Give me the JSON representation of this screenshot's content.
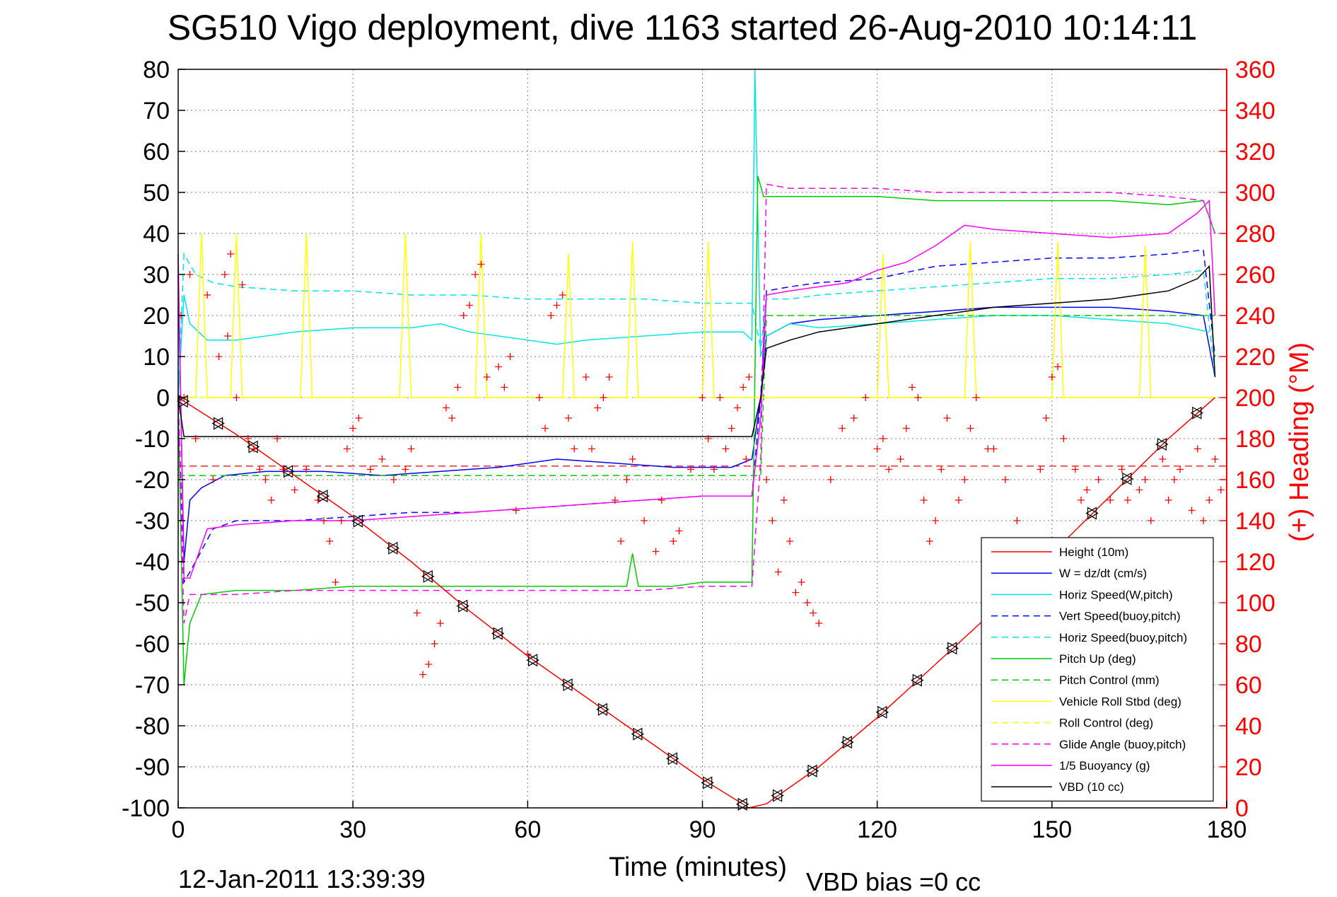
{
  "chart_data": {
    "type": "line",
    "title": "SG510 Vigo deployment, dive 1163 started 26-Aug-2010 10:14:11",
    "xlabel": "Time (minutes)",
    "ylabel_right": "(+) Heading (°M)",
    "xlim": [
      0,
      180
    ],
    "ylim": [
      -100,
      80
    ],
    "ylim_right": [
      0,
      360
    ],
    "x_ticks": [
      0,
      30,
      60,
      90,
      120,
      150,
      180
    ],
    "y_ticks": [
      80,
      70,
      60,
      50,
      40,
      30,
      20,
      10,
      0,
      -10,
      -20,
      -30,
      -40,
      -50,
      -60,
      -70,
      -80,
      -90,
      -100
    ],
    "y_ticks_right": [
      360,
      340,
      320,
      300,
      280,
      260,
      240,
      220,
      200,
      180,
      160,
      140,
      120,
      100,
      80,
      60,
      40,
      20,
      0
    ],
    "grid": true,
    "legend_position": "bottom-right",
    "series": [
      {
        "name": "Height (10m)",
        "color": "#ff0000",
        "style": "solid",
        "x": [
          0,
          10,
          20,
          30,
          40,
          50,
          60,
          70,
          80,
          90,
          98,
          101,
          110,
          120,
          130,
          140,
          150,
          160,
          170,
          178
        ],
        "y": [
          0,
          -9,
          -19,
          -29,
          -40,
          -52,
          -63,
          -73,
          -83,
          -93,
          -100,
          -99,
          -90,
          -78,
          -65,
          -52,
          -38,
          -24,
          -10,
          0
        ]
      },
      {
        "name": "W = dz/dt (cm/s)",
        "color": "#0000ff",
        "style": "solid",
        "x": [
          0,
          1,
          2,
          4,
          8,
          15,
          25,
          35,
          45,
          55,
          65,
          75,
          85,
          95,
          98.5,
          100,
          101,
          105,
          110,
          120,
          130,
          140,
          150,
          160,
          170,
          176,
          178
        ],
        "y": [
          30,
          -40,
          -25,
          -22,
          -19,
          -18,
          -18,
          -19,
          -18,
          -17,
          -15,
          -16,
          -17,
          -17,
          -15,
          0,
          15,
          18,
          19,
          20,
          21,
          22,
          22,
          22,
          21,
          20,
          5
        ]
      },
      {
        "name": "Horiz Speed(W,pitch)",
        "color": "#00e5e5",
        "style": "solid",
        "x": [
          0,
          1,
          2,
          5,
          10,
          20,
          30,
          40,
          45,
          50,
          60,
          65,
          70,
          80,
          90,
          97,
          98.5,
          99,
          100,
          101,
          105,
          110,
          120,
          130,
          140,
          150,
          160,
          170,
          177
        ],
        "y": [
          0,
          25,
          18,
          14,
          14,
          16,
          17,
          17,
          18,
          16,
          14,
          13,
          14,
          15,
          16,
          16,
          14,
          80,
          10,
          15,
          18,
          17,
          18,
          19,
          20,
          20,
          19,
          18,
          16
        ]
      },
      {
        "name": "Vert Speed(buoy,pitch)",
        "color": "#0000ff",
        "style": "dashed",
        "x": [
          0,
          1,
          3,
          6,
          10,
          20,
          30,
          40,
          50,
          60,
          70,
          80,
          90,
          98.5,
          100,
          101,
          105,
          110,
          120,
          130,
          140,
          150,
          160,
          170,
          176,
          178
        ],
        "y": [
          0,
          -45,
          -40,
          -32,
          -30,
          -30,
          -29,
          -28,
          -28,
          -27,
          -26,
          -25,
          -24,
          -24,
          0,
          26,
          27,
          28,
          29,
          32,
          33,
          34,
          34,
          35,
          36,
          10
        ]
      },
      {
        "name": "Horiz Speed(buoy,pitch)",
        "color": "#00e5e5",
        "style": "dashed",
        "x": [
          0,
          1,
          3,
          6,
          10,
          20,
          30,
          40,
          50,
          60,
          70,
          80,
          90,
          98.5,
          100,
          101,
          105,
          110,
          120,
          130,
          140,
          150,
          160,
          170,
          176,
          178
        ],
        "y": [
          0,
          35,
          30,
          28,
          27,
          26,
          26,
          25,
          25,
          24,
          24,
          24,
          23,
          23,
          12,
          24,
          24,
          25,
          26,
          27,
          28,
          29,
          29,
          30,
          31,
          5
        ]
      },
      {
        "name": "Pitch Up (deg)",
        "color": "#00cc00",
        "style": "solid",
        "x": [
          0,
          1,
          2,
          4,
          10,
          20,
          30,
          40,
          50,
          60,
          70,
          77,
          78,
          79,
          85,
          90,
          98.5,
          99.5,
          100.5,
          103,
          110,
          120,
          130,
          140,
          150,
          160,
          170,
          176,
          178
        ],
        "y": [
          0,
          -70,
          -55,
          -48,
          -47,
          -47,
          -46,
          -46,
          -46,
          -46,
          -46,
          -46,
          -38,
          -46,
          -46,
          -45,
          -45,
          54,
          49,
          49,
          49,
          49,
          48,
          48,
          48,
          48,
          47,
          48,
          40
        ]
      },
      {
        "name": "Pitch Control (mm)",
        "color": "#00cc00",
        "style": "dashed",
        "x": [
          0,
          2,
          100,
          101,
          178
        ],
        "y": [
          -19,
          -19,
          -19,
          20,
          20
        ]
      },
      {
        "name": "Vehicle Roll Stbd (deg)",
        "color": "#ffff00",
        "style": "solid",
        "x": [
          0,
          3,
          4,
          5,
          9,
          10,
          11,
          21,
          22,
          23,
          38,
          39,
          40,
          51,
          52,
          53,
          66,
          67,
          68,
          77,
          78,
          79,
          90,
          91,
          92,
          101,
          120,
          121,
          122,
          135,
          136,
          137,
          150,
          151,
          152,
          165,
          166,
          167,
          178
        ],
        "y": [
          0,
          0,
          40,
          0,
          0,
          40,
          0,
          0,
          40,
          0,
          0,
          40,
          0,
          0,
          40,
          0,
          0,
          35,
          0,
          0,
          38,
          0,
          0,
          38,
          0,
          0,
          0,
          35,
          0,
          0,
          38,
          0,
          0,
          38,
          0,
          0,
          37,
          0,
          0
        ]
      },
      {
        "name": "Roll Control (deg)",
        "color": "#ffff00",
        "style": "dashed",
        "x": [
          0,
          2,
          101,
          178
        ],
        "y": [
          0,
          0,
          0,
          0
        ]
      },
      {
        "name": "Glide Angle (buoy,pitch)",
        "color": "#ff00ff",
        "style": "dashed",
        "x": [
          0,
          1,
          2,
          5,
          10,
          20,
          30,
          40,
          50,
          60,
          70,
          80,
          90,
          98.5,
          100,
          101,
          105,
          110,
          120,
          130,
          140,
          150,
          160,
          170,
          176,
          178
        ],
        "y": [
          0,
          -55,
          -48,
          -48,
          -48,
          -47,
          -47,
          -47,
          -47,
          -47,
          -47,
          -47,
          -46,
          -46,
          -15,
          52,
          51,
          51,
          51,
          50,
          50,
          50,
          50,
          49,
          48,
          40
        ]
      },
      {
        "name": "1/5 Buoyancy (g)",
        "color": "#ff00ff",
        "style": "solid",
        "x": [
          0,
          1,
          2,
          5,
          10,
          20,
          30,
          40,
          50,
          60,
          70,
          80,
          90,
          98.5,
          100,
          101,
          105,
          110,
          115,
          120,
          125,
          130,
          135,
          140,
          150,
          160,
          170,
          175,
          177,
          178
        ],
        "y": [
          35,
          -44,
          -44,
          -32,
          -31,
          -30,
          -30,
          -29,
          -28,
          -27,
          -26,
          -25,
          -24,
          -24,
          -5,
          25,
          26,
          27,
          28,
          31,
          33,
          37,
          42,
          41,
          40,
          39,
          40,
          45,
          48,
          20
        ]
      },
      {
        "name": "VBD (10 cc)",
        "color": "#000000",
        "style": "solid",
        "x": [
          0,
          1,
          98.5,
          100,
          101,
          105,
          110,
          115,
          120,
          125,
          130,
          135,
          140,
          150,
          160,
          170,
          175,
          177,
          178
        ],
        "y": [
          0,
          -9.5,
          -9.5,
          0,
          12,
          14,
          16,
          17,
          18,
          19,
          20,
          21,
          22,
          23,
          24,
          26,
          29,
          32,
          5
        ]
      }
    ],
    "reference_line": {
      "color": "#ff0000",
      "style": "dashed",
      "y": -16.7
    },
    "heading_points": {
      "name": "(+) Heading (°M)",
      "color": "#ff0000",
      "marker": "+",
      "x": [
        0.5,
        1,
        2,
        3,
        5,
        6,
        7,
        8,
        8.5,
        9,
        10,
        11,
        12,
        13,
        14,
        15,
        16,
        17,
        18,
        20,
        22,
        24,
        25,
        26,
        27,
        28,
        29,
        30,
        31,
        33,
        35,
        37,
        39,
        40,
        41,
        42,
        43,
        44,
        45,
        46,
        47,
        48,
        49,
        50,
        51,
        52,
        53,
        55,
        56,
        57,
        58,
        60,
        62,
        63,
        64,
        65,
        66,
        67,
        68,
        70,
        71,
        72,
        73,
        74,
        75,
        76,
        77,
        78,
        80,
        82,
        83,
        85,
        86,
        88,
        90,
        91,
        92,
        93,
        94,
        95,
        96,
        97,
        97.5,
        98,
        101,
        102,
        103,
        104,
        105,
        106,
        107,
        108,
        109,
        110,
        112,
        114,
        116,
        118,
        120,
        121,
        122,
        124,
        125,
        126,
        127,
        128,
        129,
        130,
        131,
        132,
        134,
        135,
        136,
        137,
        139,
        140,
        142,
        144,
        146,
        148,
        149,
        150,
        151,
        152,
        154,
        155,
        156,
        158,
        160,
        161,
        162,
        163,
        165,
        166,
        167,
        169,
        170,
        171,
        172,
        174,
        175,
        176,
        177,
        178,
        179
      ],
      "y": [
        240,
        200,
        260,
        180,
        250,
        160,
        220,
        260,
        230,
        270,
        200,
        255,
        180,
        175,
        165,
        160,
        150,
        180,
        165,
        155,
        165,
        150,
        140,
        130,
        110,
        140,
        175,
        185,
        190,
        165,
        170,
        160,
        165,
        175,
        95,
        65,
        70,
        80,
        90,
        195,
        190,
        205,
        240,
        245,
        260,
        265,
        210,
        215,
        205,
        220,
        145,
        75,
        200,
        185,
        240,
        245,
        250,
        190,
        175,
        210,
        175,
        195,
        200,
        210,
        150,
        130,
        160,
        170,
        140,
        125,
        150,
        130,
        135,
        165,
        200,
        180,
        165,
        200,
        175,
        185,
        195,
        205,
        170,
        210,
        160,
        140,
        115,
        150,
        130,
        105,
        110,
        100,
        95,
        90,
        160,
        185,
        190,
        200,
        175,
        180,
        165,
        170,
        185,
        205,
        200,
        150,
        130,
        140,
        165,
        190,
        150,
        160,
        185,
        200,
        175,
        175,
        160,
        140,
        130,
        165,
        190,
        210,
        215,
        180,
        165,
        150,
        155,
        160,
        150,
        130,
        165,
        150,
        155,
        160,
        140,
        170,
        150,
        160,
        165,
        145,
        175,
        140,
        150,
        170,
        155
      ]
    }
  }
}
